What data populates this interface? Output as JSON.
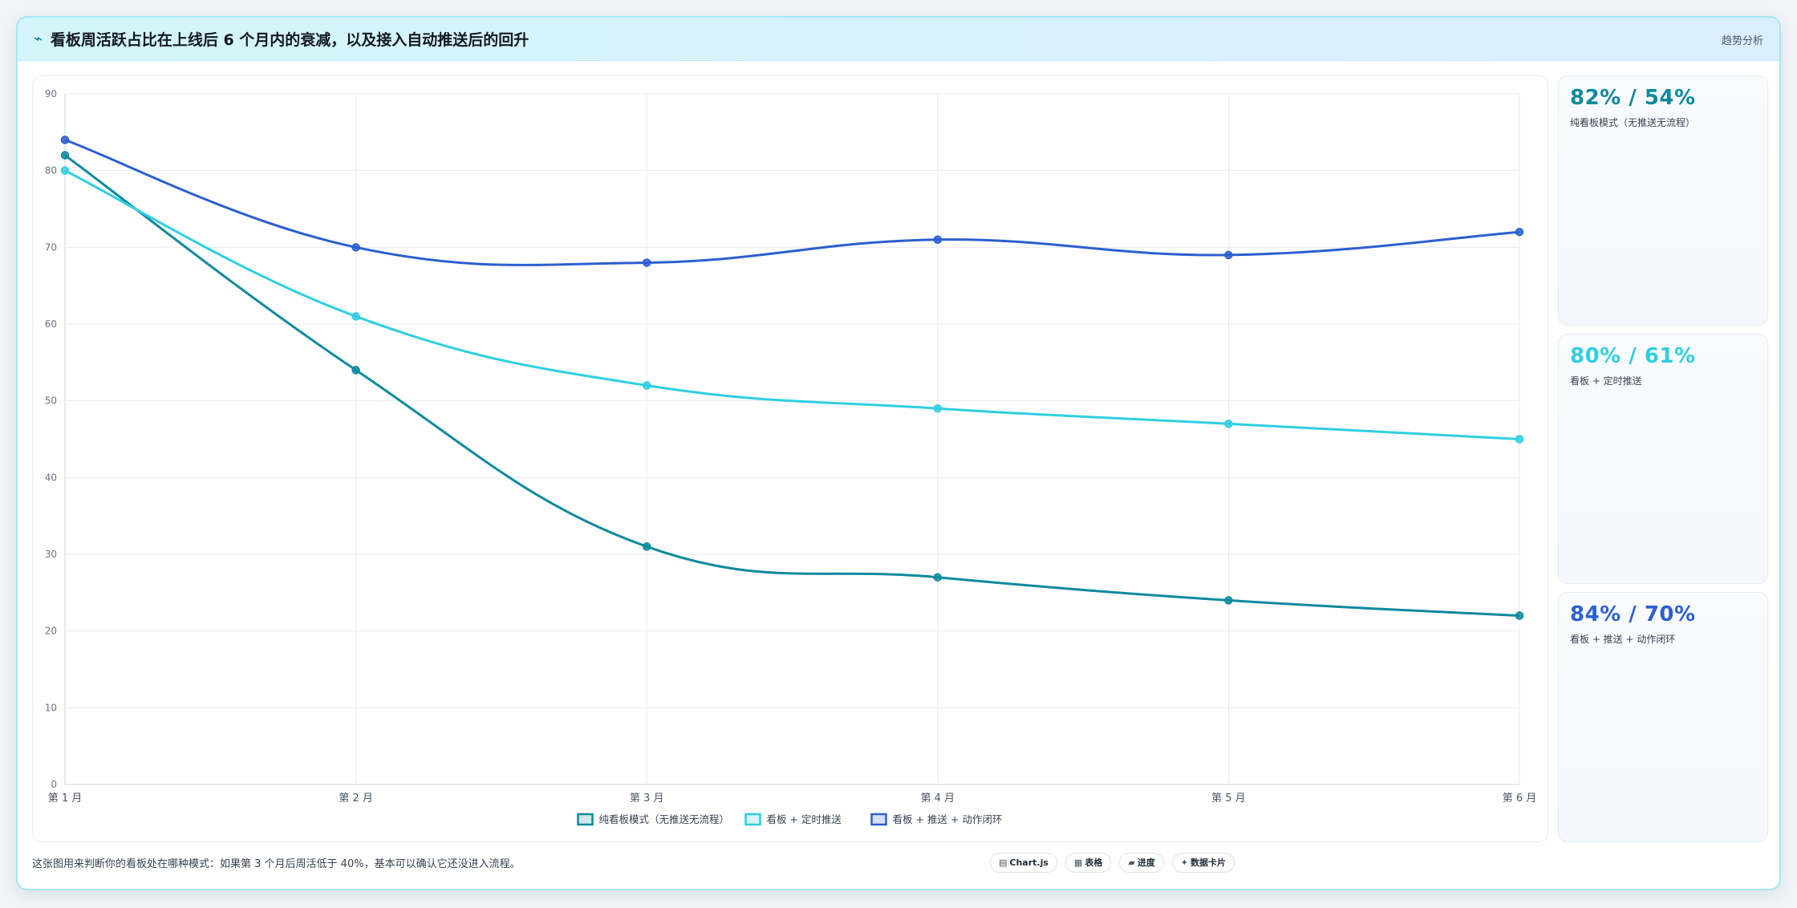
{
  "header": {
    "icon": "trend-line-icon",
    "title": "看板周活跃占比在上线后 6 个月内的衰减，以及接入自动推送后的回升",
    "tag": "趋势分析"
  },
  "chart_data": {
    "type": "line",
    "title": "",
    "xlabel": "",
    "ylabel": "",
    "categories": [
      "第 1 月",
      "第 2 月",
      "第 3 月",
      "第 4 月",
      "第 5 月",
      "第 6 月"
    ],
    "ylim": [
      0,
      90
    ],
    "yticks": [
      0,
      10,
      20,
      30,
      40,
      50,
      60,
      70,
      80,
      90
    ],
    "grid": true,
    "legend_position": "bottom-center",
    "series": [
      {
        "name": "纯看板模式（无推送无流程）",
        "color": "#0e8a9c",
        "values": [
          82,
          54,
          31,
          27,
          24,
          22
        ]
      },
      {
        "name": "看板 + 定时推送",
        "color": "#2fcfe0",
        "values": [
          80,
          61,
          52,
          49,
          47,
          45
        ]
      },
      {
        "name": "看板 + 推送 + 动作闭环",
        "color": "#2b5fd0",
        "values": [
          84,
          70,
          68,
          71,
          69,
          72
        ]
      }
    ]
  },
  "side_cards": [
    {
      "value": "82% / 54%",
      "label": "纯看板模式（无推送无流程）",
      "color": "#0e8a9c"
    },
    {
      "value": "80% / 61%",
      "label": "看板 + 定时推送",
      "color": "#2fcfe0"
    },
    {
      "value": "84% / 70%",
      "label": "看板 + 推送 + 动作闭环",
      "color": "#2b5fd0"
    }
  ],
  "footer": {
    "note": "这张图用来判断你的看板处在哪种模式：如果第 3 个月后周活低于 40%，基本可以确认它还没进入流程。",
    "pills": [
      {
        "icon": "▤",
        "icon_name": "chart-icon",
        "label": "Chart.js"
      },
      {
        "icon": "▦",
        "icon_name": "table-icon",
        "label": "表格"
      },
      {
        "icon": "▰",
        "icon_name": "progress-icon",
        "label": "进度"
      },
      {
        "icon": "✦",
        "icon_name": "card-icon",
        "label": "数据卡片"
      }
    ]
  }
}
